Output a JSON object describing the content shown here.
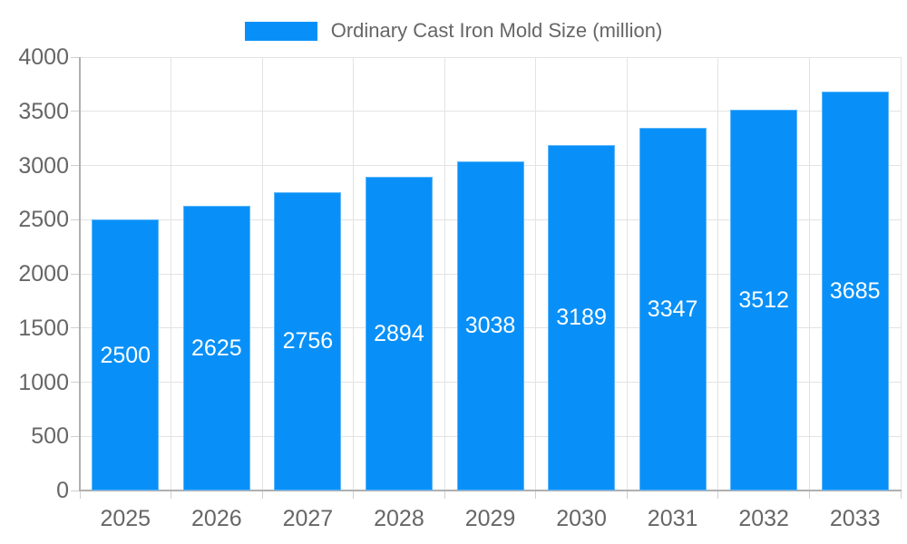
{
  "chart_data": {
    "type": "bar",
    "title": "Ordinary Cast Iron Mold Size (million)",
    "categories": [
      "2025",
      "2026",
      "2027",
      "2028",
      "2029",
      "2030",
      "2031",
      "2032",
      "2033"
    ],
    "values": [
      2500,
      2625,
      2756,
      2894,
      3038,
      3189,
      3347,
      3512,
      3685
    ],
    "series": [
      {
        "name": "Ordinary Cast Iron Mold Size (million)",
        "values": [
          2500,
          2625,
          2756,
          2894,
          3038,
          3189,
          3347,
          3512,
          3685
        ]
      }
    ],
    "xlabel": "",
    "ylabel": "",
    "ylim": [
      0,
      4000
    ],
    "yticks": [
      0,
      500,
      1000,
      1500,
      2000,
      2500,
      3000,
      3500,
      4000
    ],
    "grid": true,
    "legend_position": "top",
    "value_labels": "centered-inside-bars"
  },
  "colors": {
    "bar": "#0890f8",
    "bar_label": "#ffffff",
    "axis_text": "#666666",
    "legend_text": "#666666",
    "gridline": "#e3e3e3",
    "axis_line": "#b0b0b0",
    "tick_mark": "#cfcfcf",
    "background": "#ffffff"
  }
}
